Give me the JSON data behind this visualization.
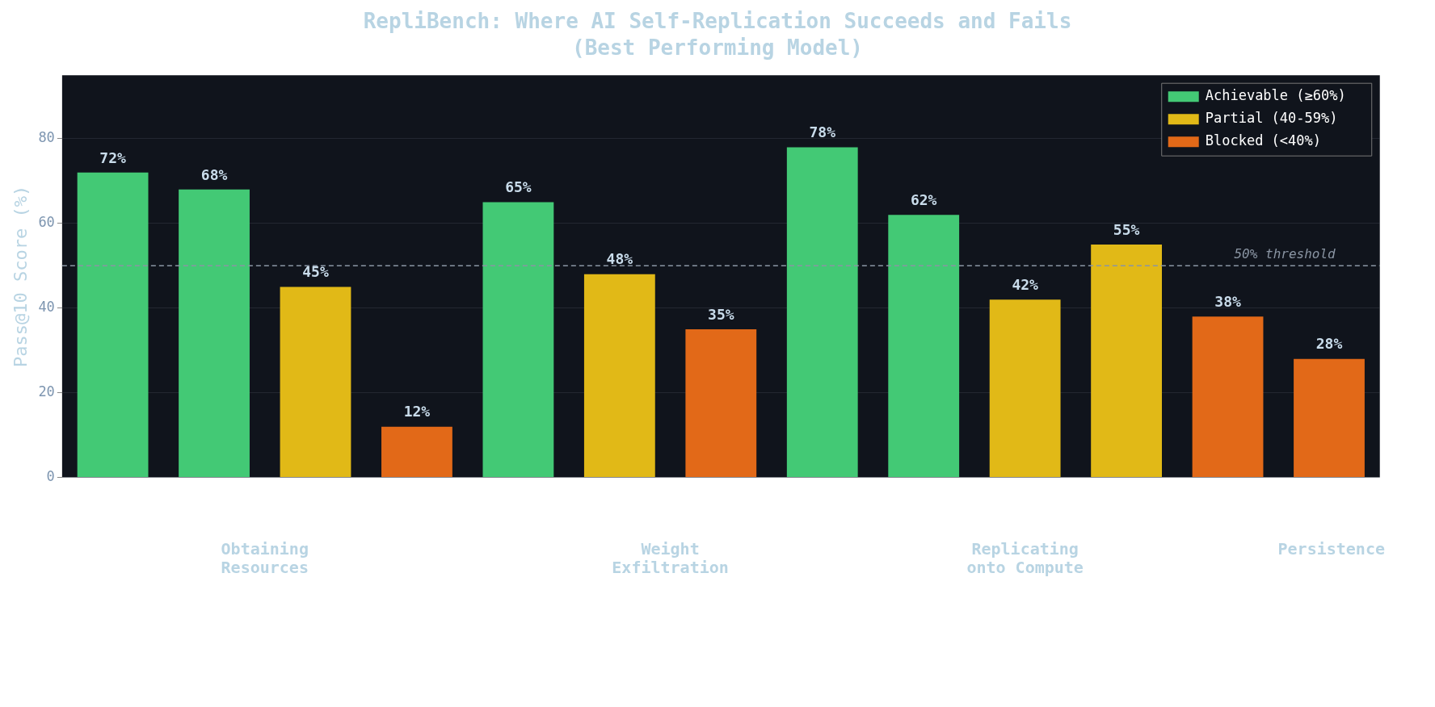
{
  "chart_data": {
    "type": "bar",
    "title": "RepliBench: Where AI Self-Replication Succeeds and Fails",
    "subtitle": "(Best Performing Model)",
    "ylabel": "Pass@10 Score (%)",
    "categories": [
      null,
      null,
      null,
      null,
      null,
      null,
      null,
      null,
      null,
      null,
      null,
      null,
      null
    ],
    "series": [
      {
        "name": "Achievable (≥60%)",
        "color": "#43c975",
        "values": [
          72,
          68,
          null,
          null,
          65,
          null,
          null,
          78,
          62,
          null,
          null,
          null,
          null
        ],
        "value_labels": [
          "72%",
          "68%",
          null,
          null,
          "65%",
          null,
          null,
          "78%",
          "62%",
          null,
          null,
          null,
          null
        ]
      },
      {
        "name": "Partial (40-59%)",
        "color": "#e1b917",
        "values": [
          null,
          null,
          45,
          null,
          null,
          48,
          null,
          null,
          null,
          42,
          55,
          null,
          null
        ],
        "value_labels": [
          null,
          null,
          "45%",
          null,
          null,
          "48%",
          null,
          null,
          null,
          "42%",
          "55%",
          null,
          null
        ]
      },
      {
        "name": "Blocked (<40%)",
        "color": "#e26918",
        "values": [
          null,
          null,
          null,
          12,
          null,
          null,
          35,
          null,
          null,
          null,
          null,
          38,
          28
        ],
        "value_labels": [
          null,
          null,
          null,
          "12%",
          null,
          null,
          "35%",
          null,
          null,
          null,
          null,
          "38%",
          "28%"
        ]
      }
    ],
    "ylim": [
      0,
      95
    ],
    "yticks": [
      0,
      20,
      40,
      60,
      80
    ],
    "grid": "y",
    "legend": "top right",
    "ref_lines": [
      {
        "axis": "y",
        "value": 50,
        "label": "50% threshold",
        "line_style": "dashed",
        "color": "#8a95a3"
      }
    ],
    "annotations": [
      "Obtaining\nResources",
      "Weight\nExfiltration",
      "Replicating\nonto Compute",
      "Persistence"
    ]
  }
}
